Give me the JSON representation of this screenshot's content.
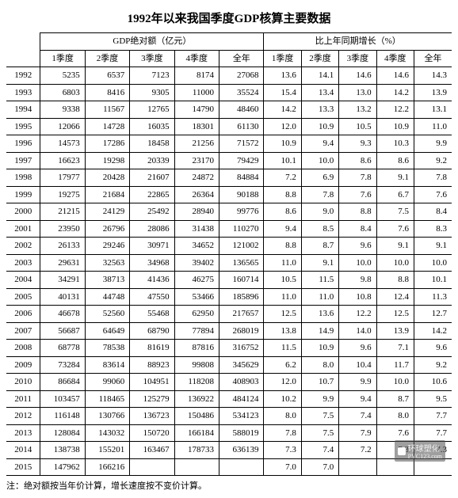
{
  "title": "1992年以来我国季度GDP核算主要数据",
  "group_headers": {
    "abs": "GDP绝对额（亿元）",
    "growth": "比上年同期增长（%）"
  },
  "col_headers": {
    "q1": "1季度",
    "q2": "2季度",
    "q3": "3季度",
    "q4": "4季度",
    "year": "全年"
  },
  "rows": [
    {
      "year": "1992",
      "abs": [
        "5235",
        "6537",
        "7123",
        "8174",
        "27068"
      ],
      "grw": [
        "13.6",
        "14.1",
        "14.6",
        "14.6",
        "14.3"
      ]
    },
    {
      "year": "1993",
      "abs": [
        "6803",
        "8416",
        "9305",
        "11000",
        "35524"
      ],
      "grw": [
        "15.4",
        "13.4",
        "13.0",
        "14.2",
        "13.9"
      ]
    },
    {
      "year": "1994",
      "abs": [
        "9338",
        "11567",
        "12765",
        "14790",
        "48460"
      ],
      "grw": [
        "14.2",
        "13.3",
        "13.2",
        "12.2",
        "13.1"
      ]
    },
    {
      "year": "1995",
      "abs": [
        "12066",
        "14728",
        "16035",
        "18301",
        "61130"
      ],
      "grw": [
        "12.0",
        "10.9",
        "10.5",
        "10.9",
        "11.0"
      ]
    },
    {
      "year": "1996",
      "abs": [
        "14573",
        "17286",
        "18458",
        "21256",
        "71572"
      ],
      "grw": [
        "10.9",
        "9.4",
        "9.3",
        "10.3",
        "9.9"
      ]
    },
    {
      "year": "1997",
      "abs": [
        "16623",
        "19298",
        "20339",
        "23170",
        "79429"
      ],
      "grw": [
        "10.1",
        "10.0",
        "8.6",
        "8.6",
        "9.2"
      ]
    },
    {
      "year": "1998",
      "abs": [
        "17977",
        "20428",
        "21607",
        "24872",
        "84884"
      ],
      "grw": [
        "7.2",
        "6.9",
        "7.8",
        "9.1",
        "7.8"
      ]
    },
    {
      "year": "1999",
      "abs": [
        "19275",
        "21684",
        "22865",
        "26364",
        "90188"
      ],
      "grw": [
        "8.8",
        "7.8",
        "7.6",
        "6.7",
        "7.6"
      ]
    },
    {
      "year": "2000",
      "abs": [
        "21215",
        "24129",
        "25492",
        "28940",
        "99776"
      ],
      "grw": [
        "8.6",
        "9.0",
        "8.8",
        "7.5",
        "8.4"
      ]
    },
    {
      "year": "2001",
      "abs": [
        "23950",
        "26796",
        "28086",
        "31438",
        "110270"
      ],
      "grw": [
        "9.4",
        "8.5",
        "8.4",
        "7.6",
        "8.3"
      ]
    },
    {
      "year": "2002",
      "abs": [
        "26133",
        "29246",
        "30971",
        "34652",
        "121002"
      ],
      "grw": [
        "8.8",
        "8.7",
        "9.6",
        "9.1",
        "9.1"
      ]
    },
    {
      "year": "2003",
      "abs": [
        "29631",
        "32563",
        "34968",
        "39402",
        "136565"
      ],
      "grw": [
        "11.0",
        "9.1",
        "10.0",
        "10.0",
        "10.0"
      ]
    },
    {
      "year": "2004",
      "abs": [
        "34291",
        "38713",
        "41436",
        "46275",
        "160714"
      ],
      "grw": [
        "10.5",
        "11.5",
        "9.8",
        "8.8",
        "10.1"
      ]
    },
    {
      "year": "2005",
      "abs": [
        "40131",
        "44748",
        "47550",
        "53466",
        "185896"
      ],
      "grw": [
        "11.0",
        "11.0",
        "10.8",
        "12.4",
        "11.3"
      ]
    },
    {
      "year": "2006",
      "abs": [
        "46678",
        "52560",
        "55468",
        "62950",
        "217657"
      ],
      "grw": [
        "12.5",
        "13.6",
        "12.2",
        "12.5",
        "12.7"
      ]
    },
    {
      "year": "2007",
      "abs": [
        "56687",
        "64649",
        "68790",
        "77894",
        "268019"
      ],
      "grw": [
        "13.8",
        "14.9",
        "14.0",
        "13.9",
        "14.2"
      ]
    },
    {
      "year": "2008",
      "abs": [
        "68778",
        "78538",
        "81619",
        "87816",
        "316752"
      ],
      "grw": [
        "11.5",
        "10.9",
        "9.6",
        "7.1",
        "9.6"
      ]
    },
    {
      "year": "2009",
      "abs": [
        "73284",
        "83614",
        "88923",
        "99808",
        "345629"
      ],
      "grw": [
        "6.2",
        "8.0",
        "10.4",
        "11.7",
        "9.2"
      ]
    },
    {
      "year": "2010",
      "abs": [
        "86684",
        "99060",
        "104951",
        "118208",
        "408903"
      ],
      "grw": [
        "12.0",
        "10.7",
        "9.9",
        "10.0",
        "10.6"
      ]
    },
    {
      "year": "2011",
      "abs": [
        "103457",
        "118465",
        "125279",
        "136922",
        "484124"
      ],
      "grw": [
        "10.2",
        "9.9",
        "9.4",
        "8.7",
        "9.5"
      ]
    },
    {
      "year": "2012",
      "abs": [
        "116148",
        "130766",
        "136723",
        "150486",
        "534123"
      ],
      "grw": [
        "8.0",
        "7.5",
        "7.4",
        "8.0",
        "7.7"
      ]
    },
    {
      "year": "2013",
      "abs": [
        "128084",
        "143032",
        "150720",
        "166184",
        "588019"
      ],
      "grw": [
        "7.8",
        "7.5",
        "7.9",
        "7.6",
        "7.7"
      ]
    },
    {
      "year": "2014",
      "abs": [
        "138738",
        "155201",
        "163467",
        "178733",
        "636139"
      ],
      "grw": [
        "7.3",
        "7.4",
        "7.2",
        "7.3",
        "7.3"
      ]
    },
    {
      "year": "2015",
      "abs": [
        "147962",
        "166216",
        "",
        "",
        ""
      ],
      "grw": [
        "7.0",
        "7.0",
        "",
        "",
        ""
      ]
    }
  ],
  "footnote": "注：绝对额按当年价计算，增长速度按不变价计算。",
  "watermark": {
    "brand": "环球塑化",
    "url": "PVC123.com"
  },
  "style": {
    "background_color": "#ffffff",
    "text_color": "#000000",
    "border_color": "#000000",
    "title_fontsize": 15,
    "cell_fontsize": 11
  }
}
